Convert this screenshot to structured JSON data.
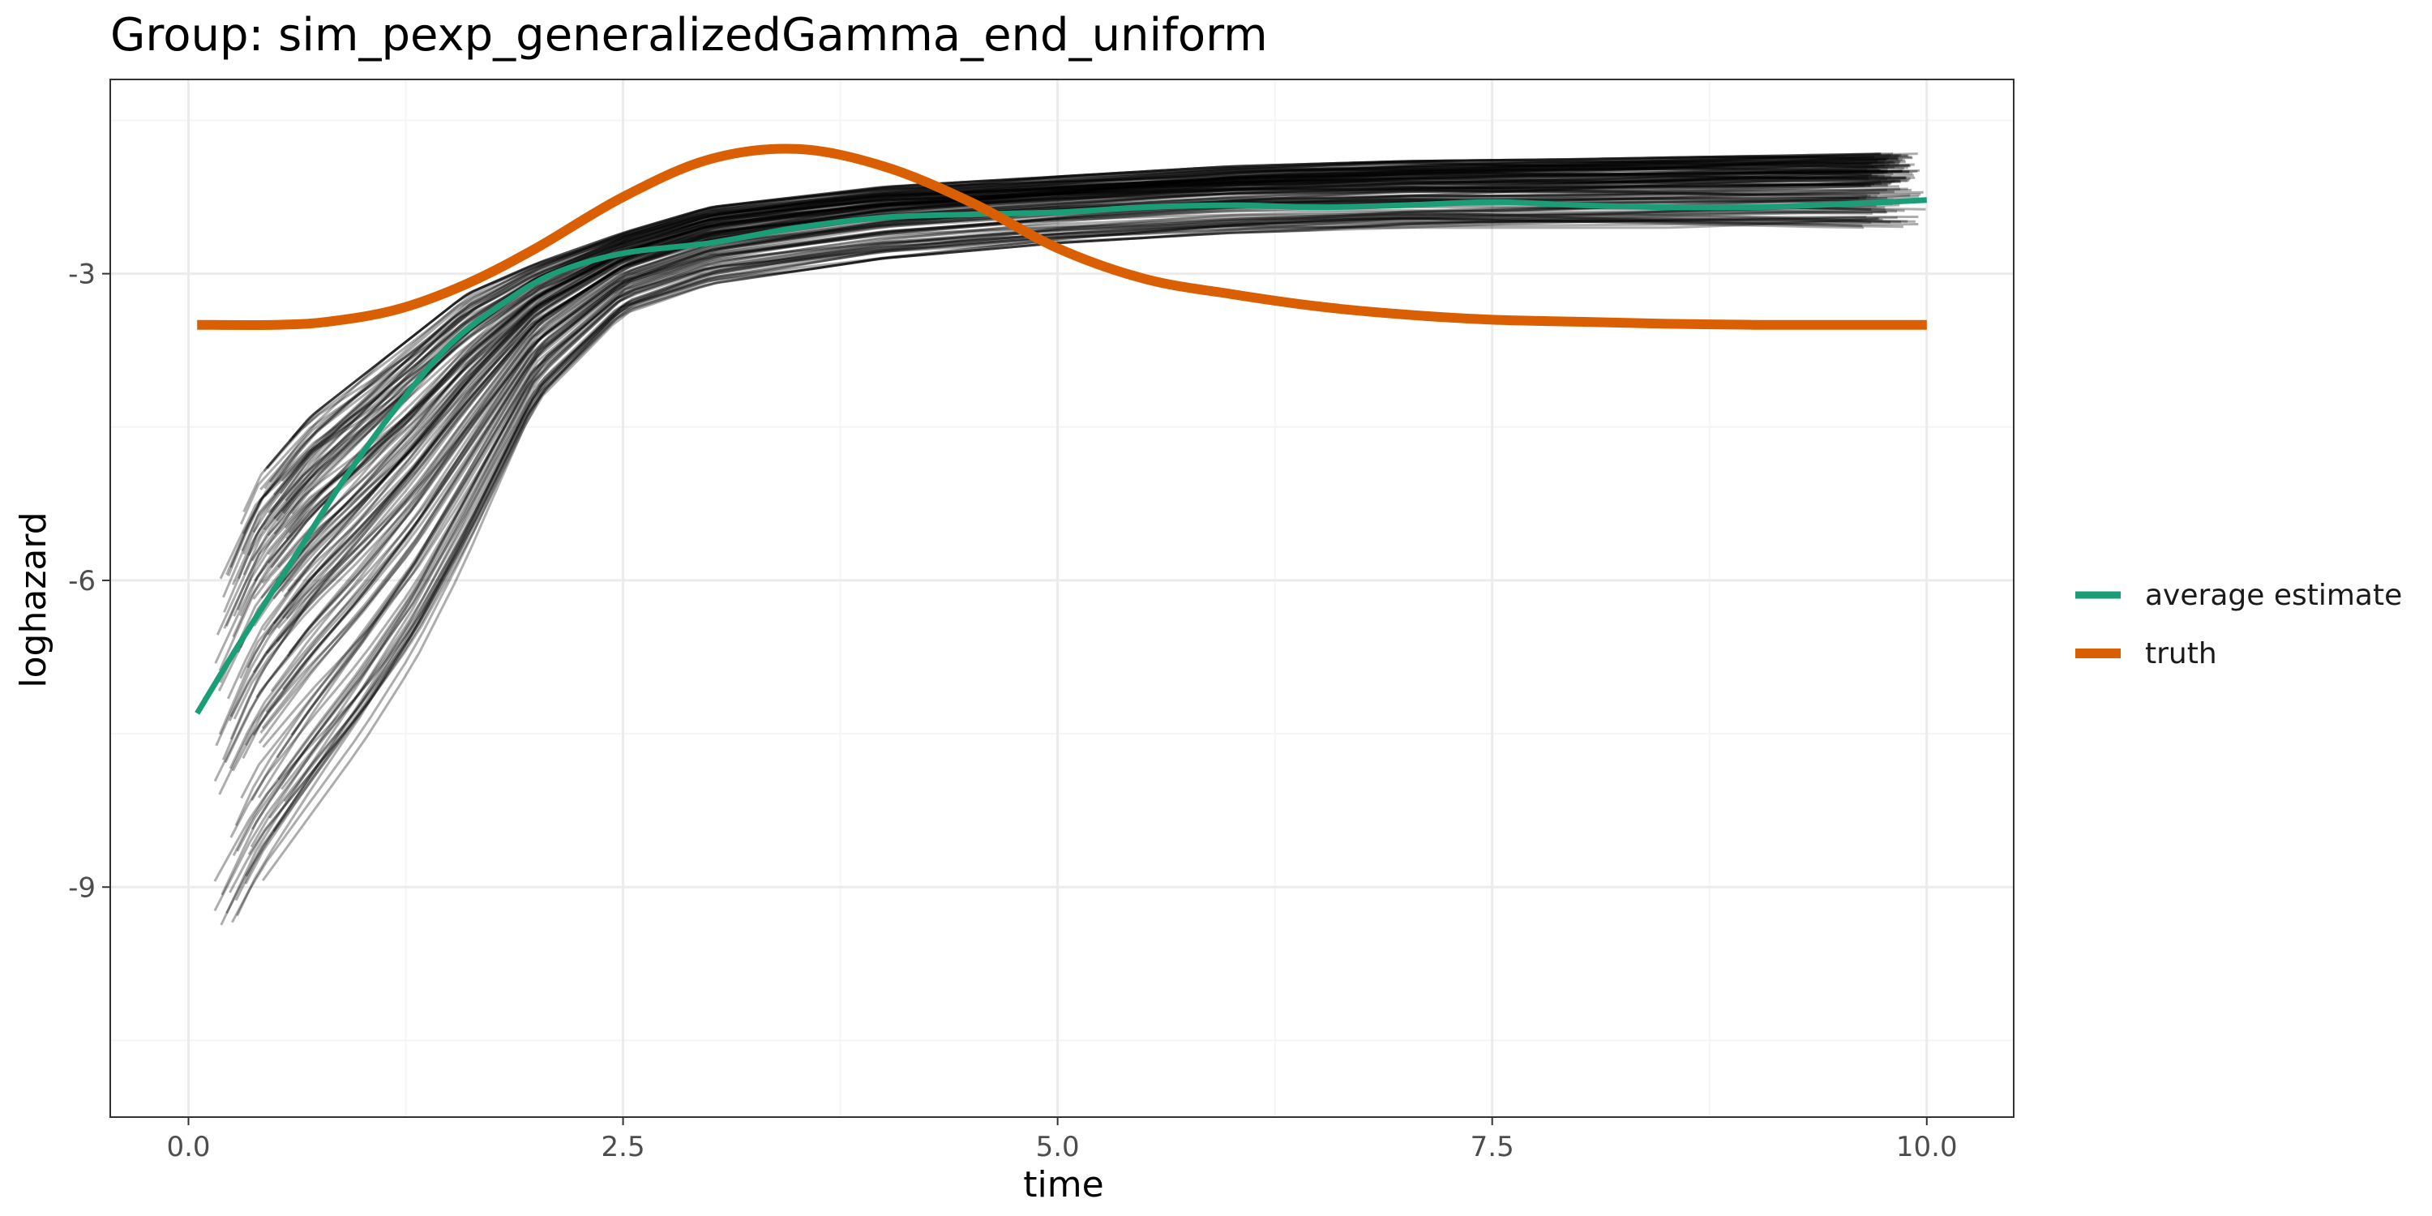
{
  "chart_data": {
    "type": "line",
    "title": "Group: sim_pexp_generalizedGamma_end_uniform",
    "xlabel": "time",
    "ylabel": "loghazard",
    "xlim": [
      -0.45,
      10.5
    ],
    "ylim": [
      -11.25,
      -1.1
    ],
    "x_ticks": [
      0.0,
      2.5,
      5.0,
      7.5,
      10.0
    ],
    "x_tick_labels": [
      "0.0",
      "2.5",
      "5.0",
      "7.5",
      "10.0"
    ],
    "y_ticks": [
      -3,
      -6,
      -9
    ],
    "y_tick_labels": [
      "-3",
      "-6",
      "-9"
    ],
    "grid": true,
    "legend_position": "right",
    "series": [
      {
        "name": "average estimate",
        "color": "#1b9e77",
        "x": [
          0.05,
          0.3,
          0.6,
          0.9,
          1.2,
          1.5,
          1.8,
          2.1,
          2.5,
          3.0,
          3.5,
          4.0,
          4.5,
          5.0,
          5.5,
          6.0,
          6.5,
          7.0,
          7.5,
          8.0,
          8.5,
          9.0,
          9.5,
          10.0
        ],
        "y": [
          -7.3,
          -6.6,
          -5.8,
          -5.0,
          -4.3,
          -3.7,
          -3.3,
          -3.0,
          -2.8,
          -2.7,
          -2.55,
          -2.45,
          -2.42,
          -2.4,
          -2.35,
          -2.33,
          -2.35,
          -2.33,
          -2.3,
          -2.33,
          -2.35,
          -2.35,
          -2.32,
          -2.28
        ]
      },
      {
        "name": "truth",
        "color": "#d95f02",
        "x": [
          0.05,
          0.5,
          0.8,
          1.2,
          1.6,
          2.0,
          2.5,
          3.0,
          3.5,
          4.0,
          4.5,
          5.0,
          5.5,
          6.0,
          6.5,
          7.0,
          7.5,
          8.0,
          8.5,
          9.0,
          9.5,
          10.0
        ],
        "y": [
          -3.5,
          -3.5,
          -3.47,
          -3.35,
          -3.1,
          -2.75,
          -2.25,
          -1.88,
          -1.78,
          -1.95,
          -2.3,
          -2.75,
          -3.05,
          -3.2,
          -3.32,
          -3.4,
          -3.45,
          -3.47,
          -3.49,
          -3.5,
          -3.5,
          -3.5
        ]
      }
    ],
    "simulation_runs": {
      "color": "#000000",
      "description_of_band": "many semi-transparent black estimate curves",
      "lower": {
        "x": [
          0.15,
          0.4,
          0.7,
          1.0,
          1.3,
          1.6,
          2.0,
          2.5,
          3.0,
          4.0,
          5.0,
          6.0,
          7.0,
          8.0,
          9.0,
          10.0
        ],
        "y": [
          -9.8,
          -9.0,
          -8.3,
          -7.6,
          -6.8,
          -5.8,
          -4.3,
          -3.4,
          -3.1,
          -2.85,
          -2.7,
          -2.6,
          -2.55,
          -2.55,
          -2.55,
          -2.55
        ]
      },
      "upper": {
        "x": [
          0.15,
          0.4,
          0.7,
          1.0,
          1.3,
          1.6,
          2.0,
          2.5,
          3.0,
          4.0,
          5.0,
          6.0,
          7.0,
          8.0,
          9.0,
          10.0
        ],
        "y": [
          -6.0,
          -5.0,
          -4.4,
          -4.0,
          -3.6,
          -3.2,
          -2.9,
          -2.6,
          -2.35,
          -2.15,
          -2.05,
          -1.95,
          -1.9,
          -1.88,
          -1.85,
          -1.82
        ]
      }
    }
  },
  "legend": {
    "items": [
      {
        "label": "average estimate",
        "color": "#1b9e77"
      },
      {
        "label": "truth",
        "color": "#d95f02"
      }
    ]
  },
  "colors": {
    "panel_border": "#333333",
    "grid_major": "#ebebeb",
    "grid_minor": "#f5f5f5",
    "tick_text": "#4d4d4d"
  }
}
